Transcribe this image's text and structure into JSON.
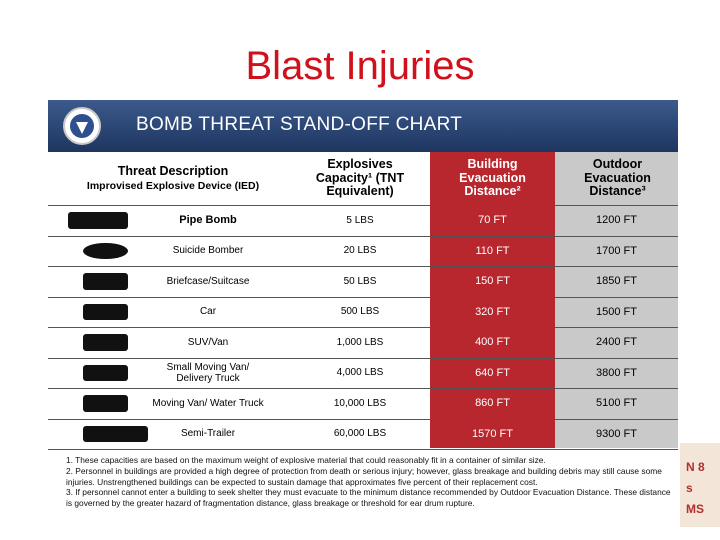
{
  "title": "Blast Injuries",
  "chart": {
    "heading": "BOMB THREAT STAND-OFF CHART",
    "headers": {
      "threat": "Threat Description",
      "threat_sub": "Improvised Explosive Device (IED)",
      "explosives": "Explosives Capacity¹ (TNT Equivalent)",
      "building": "Building Evacuation Distance²",
      "outdoor": "Outdoor Evacuation Distance³"
    },
    "rows": [
      [
        "Pipe Bomb",
        "5 LBS",
        "70 FT",
        "1200 FT"
      ],
      [
        "Suicide Bomber",
        "20 LBS",
        "110 FT",
        "1700 FT"
      ],
      [
        "Briefcase/Suitcase",
        "50 LBS",
        "150 FT",
        "1850 FT"
      ],
      [
        "Car",
        "500 LBS",
        "320 FT",
        "1500 FT"
      ],
      [
        "SUV/Van",
        "1,000 LBS",
        "400 FT",
        "2400 FT"
      ],
      [
        "Small Moving Van/ Delivery Truck",
        "4,000 LBS",
        "640 FT",
        "3800 FT"
      ],
      [
        "Moving Van/ Water Truck",
        "10,000 LBS",
        "860 FT",
        "5100 FT"
      ],
      [
        "Semi-Trailer",
        "60,000 LBS",
        "1570 FT",
        "9300 FT"
      ]
    ],
    "footnotes": [
      "1. These capacities are based on the maximum weight of explosive material that could reasonably fit in a container of similar size.",
      "2. Personnel in buildings are provided a high degree of protection from death or serious injury; however, glass breakage and building debris may still cause some injuries. Unstrengthened buildings can be expected to sustain damage that approximates five percent of their replacement cost.",
      "3. If personnel cannot enter a building to seek shelter they must evacuate to the minimum distance recommended by Outdoor Evacuation Distance. These distance is governed by the greater hazard of fragmentation distance, glass breakage or threshold for ear drum rupture."
    ]
  },
  "side_fragment": [
    "N 8",
    "s",
    "MS"
  ]
}
